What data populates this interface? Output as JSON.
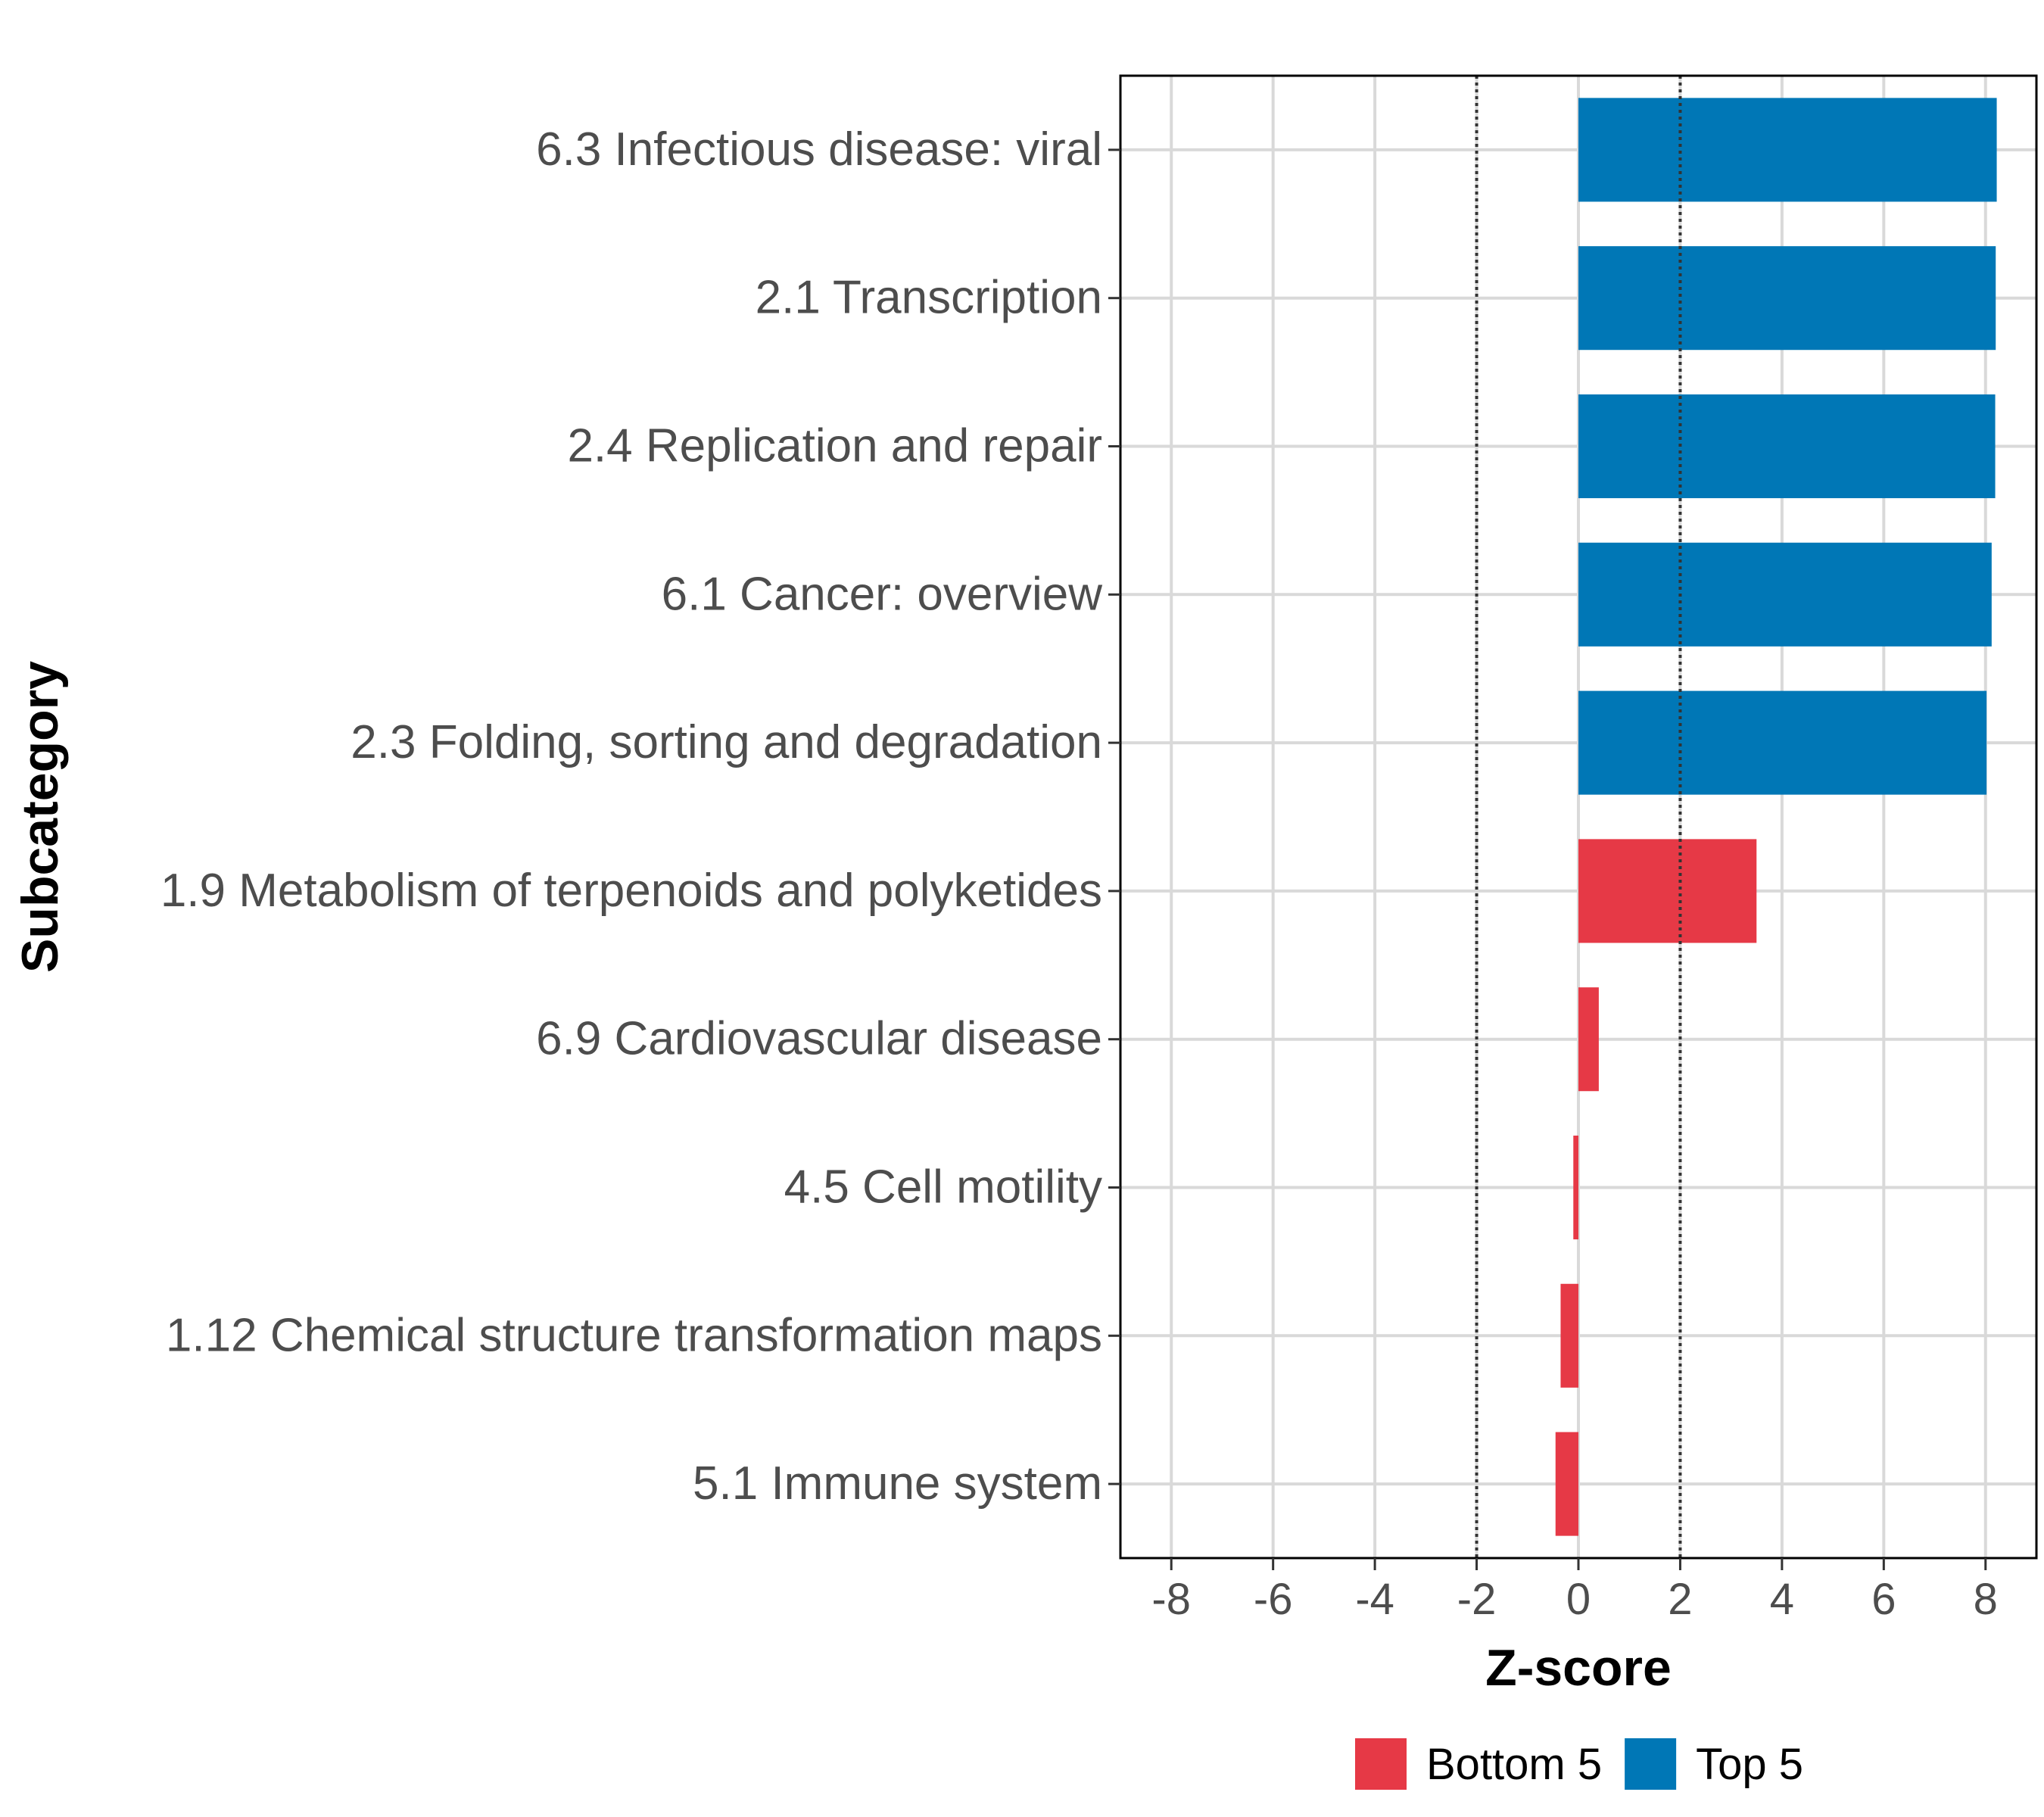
{
  "chart_data": {
    "type": "bar",
    "orientation": "horizontal",
    "xlabel": "Z-score",
    "ylabel": "Subcategory",
    "xlim": [
      -9,
      9
    ],
    "xticks": [
      -8,
      -6,
      -4,
      -2,
      0,
      2,
      4,
      6,
      8
    ],
    "reference_lines": [
      -2,
      2
    ],
    "grid": true,
    "legend_position": "bottom",
    "categories": [
      "6.3 Infectious disease: viral",
      "2.1 Transcription",
      "2.4 Replication and repair",
      "6.1 Cancer: overview",
      "2.3 Folding, sorting and degradation",
      "1.9 Metabolism of terpenoids and polyketides",
      "6.9 Cardiovascular disease",
      "4.5 Cell motility",
      "1.12 Chemical structure transformation maps",
      "5.1 Immune system"
    ],
    "values": [
      8.22,
      8.2,
      8.19,
      8.12,
      8.02,
      3.5,
      0.4,
      -0.1,
      -0.35,
      -0.45
    ],
    "groups": [
      "Top 5",
      "Top 5",
      "Top 5",
      "Top 5",
      "Top 5",
      "Bottom 5",
      "Bottom 5",
      "Bottom 5",
      "Bottom 5",
      "Bottom 5"
    ],
    "legend": [
      {
        "name": "Bottom 5",
        "color": "#E63946"
      },
      {
        "name": "Top 5",
        "color": "#0077B6"
      }
    ]
  }
}
